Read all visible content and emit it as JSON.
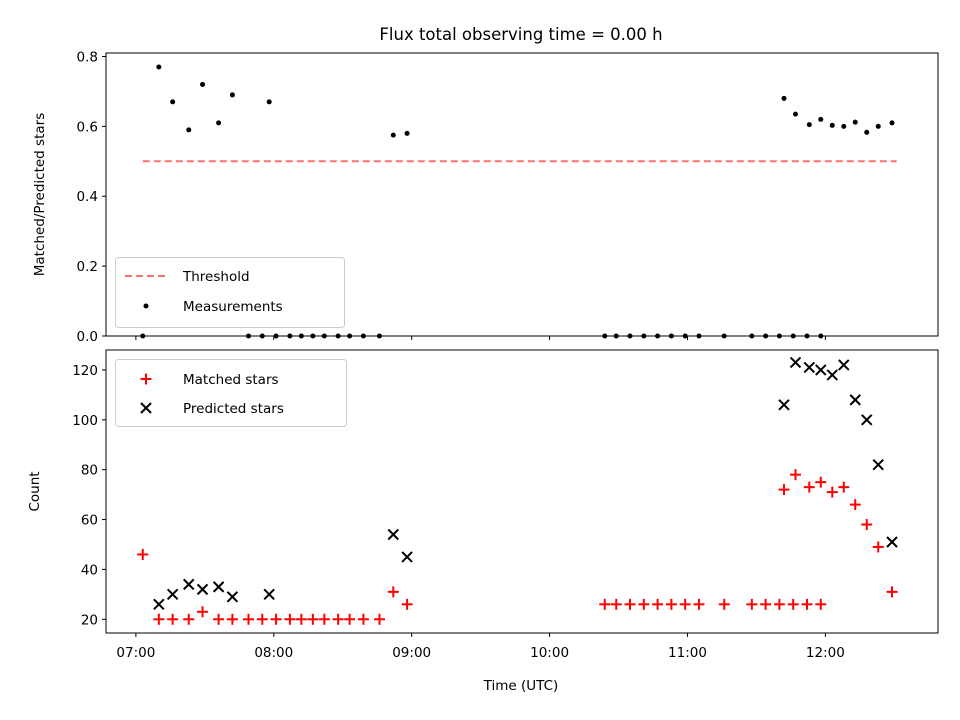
{
  "chart_data": [
    {
      "type": "scatter",
      "title": "Flux total observing time = 0.00 h",
      "xlabel": "",
      "ylabel": "Matched/Predicted stars",
      "xlim": [
        "06:47",
        "12:49"
      ],
      "ylim": [
        0,
        0.81
      ],
      "yticks": [
        "0.0",
        "0.2",
        "0.4",
        "0.6",
        "0.8"
      ],
      "legend": {
        "position": "lower-left",
        "entries": [
          "Threshold",
          "Measurements"
        ]
      },
      "colors": {
        "threshold": "#ff7070",
        "measurements": "#000000"
      },
      "threshold": {
        "name": "Threshold",
        "x": [
          "07:03",
          "12:31"
        ],
        "y": 0.5
      },
      "series": [
        {
          "name": "Measurements",
          "points": [
            [
              "07:03",
              0.0
            ],
            [
              "07:10",
              0.77
            ],
            [
              "07:16",
              0.67
            ],
            [
              "07:23",
              0.59
            ],
            [
              "07:29",
              0.72
            ],
            [
              "07:36",
              0.61
            ],
            [
              "07:42",
              0.69
            ],
            [
              "07:49",
              0.0
            ],
            [
              "07:55",
              0.0
            ],
            [
              "07:58",
              0.67
            ],
            [
              "08:01",
              0.0
            ],
            [
              "08:07",
              0.0
            ],
            [
              "08:12",
              0.0
            ],
            [
              "08:17",
              0.0
            ],
            [
              "08:22",
              0.0
            ],
            [
              "08:28",
              0.0
            ],
            [
              "08:33",
              0.0
            ],
            [
              "08:39",
              0.0
            ],
            [
              "08:46",
              0.0
            ],
            [
              "08:52",
              0.575
            ],
            [
              "08:58",
              0.58
            ],
            [
              "10:24",
              0.0
            ],
            [
              "10:29",
              0.0
            ],
            [
              "10:35",
              0.0
            ],
            [
              "10:41",
              0.0
            ],
            [
              "10:47",
              0.0
            ],
            [
              "10:53",
              0.0
            ],
            [
              "10:59",
              0.0
            ],
            [
              "11:05",
              0.0
            ],
            [
              "11:16",
              0.0
            ],
            [
              "11:28",
              0.0
            ],
            [
              "11:34",
              0.0
            ],
            [
              "11:40",
              0.0
            ],
            [
              "11:46",
              0.0
            ],
            [
              "11:52",
              0.0
            ],
            [
              "11:58",
              0.0
            ],
            [
              "11:42",
              0.68
            ],
            [
              "11:47",
              0.635
            ],
            [
              "11:53",
              0.605
            ],
            [
              "11:58",
              0.62
            ],
            [
              "12:03",
              0.603
            ],
            [
              "12:08",
              0.6
            ],
            [
              "12:13",
              0.612
            ],
            [
              "12:18",
              0.583
            ],
            [
              "12:23",
              0.6
            ],
            [
              "12:29",
              0.61
            ]
          ]
        }
      ]
    },
    {
      "type": "scatter",
      "title": "",
      "xlabel": "Time (UTC)",
      "ylabel": "Count",
      "xlim": [
        "06:47",
        "12:49"
      ],
      "ylim": [
        14.5,
        128
      ],
      "yticks": [
        "20",
        "40",
        "60",
        "80",
        "100",
        "120"
      ],
      "xticks": [
        "07:00",
        "08:00",
        "09:00",
        "10:00",
        "11:00",
        "12:00"
      ],
      "legend": {
        "position": "upper-left",
        "entries": [
          "Matched stars",
          "Predicted stars"
        ]
      },
      "colors": {
        "matched": "#ff0000",
        "predicted": "#000000"
      },
      "series": [
        {
          "name": "Matched stars",
          "points": [
            [
              "07:03",
              46
            ],
            [
              "07:10",
              20
            ],
            [
              "07:16",
              20
            ],
            [
              "07:23",
              20
            ],
            [
              "07:29",
              23
            ],
            [
              "07:36",
              20
            ],
            [
              "07:42",
              20
            ],
            [
              "07:49",
              20
            ],
            [
              "07:55",
              20
            ],
            [
              "08:01",
              20
            ],
            [
              "08:07",
              20
            ],
            [
              "08:12",
              20
            ],
            [
              "08:17",
              20
            ],
            [
              "08:22",
              20
            ],
            [
              "08:28",
              20
            ],
            [
              "08:33",
              20
            ],
            [
              "08:39",
              20
            ],
            [
              "08:46",
              20
            ],
            [
              "08:52",
              31
            ],
            [
              "08:58",
              26
            ],
            [
              "10:24",
              26
            ],
            [
              "10:29",
              26
            ],
            [
              "10:35",
              26
            ],
            [
              "10:41",
              26
            ],
            [
              "10:47",
              26
            ],
            [
              "10:53",
              26
            ],
            [
              "10:59",
              26
            ],
            [
              "11:05",
              26
            ],
            [
              "11:16",
              26
            ],
            [
              "11:28",
              26
            ],
            [
              "11:34",
              26
            ],
            [
              "11:40",
              26
            ],
            [
              "11:46",
              26
            ],
            [
              "11:52",
              26
            ],
            [
              "11:58",
              26
            ],
            [
              "11:42",
              72
            ],
            [
              "11:47",
              78
            ],
            [
              "11:53",
              73
            ],
            [
              "11:58",
              75
            ],
            [
              "12:03",
              71
            ],
            [
              "12:08",
              73
            ],
            [
              "12:13",
              66
            ],
            [
              "12:18",
              58
            ],
            [
              "12:23",
              49
            ],
            [
              "12:29",
              31
            ]
          ]
        },
        {
          "name": "Predicted stars",
          "points": [
            [
              "07:10",
              26
            ],
            [
              "07:16",
              30
            ],
            [
              "07:23",
              34
            ],
            [
              "07:29",
              32
            ],
            [
              "07:36",
              33
            ],
            [
              "07:42",
              29
            ],
            [
              "07:58",
              30
            ],
            [
              "08:52",
              54
            ],
            [
              "08:58",
              45
            ],
            [
              "11:42",
              106
            ],
            [
              "11:47",
              123
            ],
            [
              "11:53",
              121
            ],
            [
              "11:58",
              120
            ],
            [
              "12:03",
              118
            ],
            [
              "12:08",
              122
            ],
            [
              "12:13",
              108
            ],
            [
              "12:18",
              100
            ],
            [
              "12:23",
              82
            ],
            [
              "12:29",
              51
            ]
          ]
        }
      ]
    }
  ]
}
